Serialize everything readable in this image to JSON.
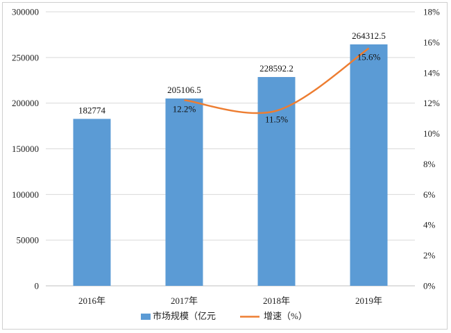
{
  "chart_data": {
    "type": "bar",
    "categories": [
      "2016年",
      "2017年",
      "2018年",
      "2019年"
    ],
    "series": [
      {
        "name": "市场规模（亿元",
        "type": "bar",
        "axis": "left",
        "values": [
          182774,
          205106.5,
          228592.2,
          264312.5
        ],
        "labels": [
          "182774",
          "205106.5",
          "228592.2",
          "264312.5"
        ]
      },
      {
        "name": "增速（%）",
        "type": "line",
        "axis": "right",
        "values": [
          null,
          12.2,
          11.5,
          15.6
        ],
        "labels": [
          null,
          "12.2%",
          "11.5%",
          "15.6%"
        ]
      }
    ],
    "y_left": {
      "ylim": [
        0,
        300000
      ],
      "ticks": [
        0,
        50000,
        100000,
        150000,
        200000,
        250000,
        300000
      ],
      "tick_labels": [
        "0",
        "50000",
        "100000",
        "150000",
        "200000",
        "250000",
        "300000"
      ]
    },
    "y_right": {
      "ylim": [
        0,
        18
      ],
      "ticks": [
        0,
        2,
        4,
        6,
        8,
        10,
        12,
        14,
        16,
        18
      ],
      "tick_labels": [
        "0%",
        "2%",
        "4%",
        "6%",
        "8%",
        "10%",
        "12%",
        "14%",
        "16%",
        "18%"
      ]
    },
    "grid": true,
    "legend": "bottom",
    "colors": {
      "bar": "#5b9bd5",
      "line": "#ed7d31",
      "grid": "#d9d9d9"
    }
  }
}
